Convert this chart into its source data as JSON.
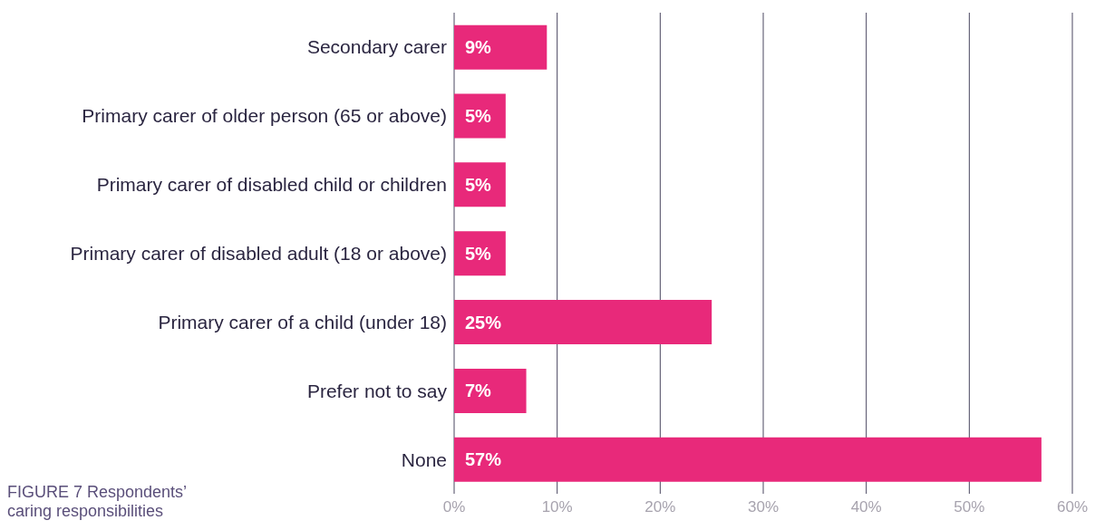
{
  "chart_data": {
    "type": "bar",
    "orientation": "horizontal",
    "categories": [
      "Secondary carer",
      "Primary carer of older person (65 or above)",
      "Primary carer of disabled child or children",
      "Primary carer of disabled adult (18 or above)",
      "Primary carer of a child (under 18)",
      "Prefer not to say",
      "None"
    ],
    "values": [
      9,
      5,
      5,
      5,
      25,
      7,
      57
    ],
    "value_labels": [
      "9%",
      "5%",
      "5%",
      "5%",
      "25%",
      "7%",
      "57%"
    ],
    "color": "#e8297a",
    "xlim": [
      0,
      60
    ],
    "xticks": [
      {
        "value": 0,
        "label": "0%"
      },
      {
        "value": 10,
        "label": "10%"
      },
      {
        "value": 20,
        "label": "20%"
      },
      {
        "value": 30,
        "label": "30%"
      },
      {
        "value": 40,
        "label": "40%"
      },
      {
        "value": 50,
        "label": "50%"
      },
      {
        "value": 60,
        "label": "60%"
      }
    ],
    "grid": "x",
    "annotations": [
      "FIGURE 7 Respondents’ caring responsibilities"
    ]
  }
}
